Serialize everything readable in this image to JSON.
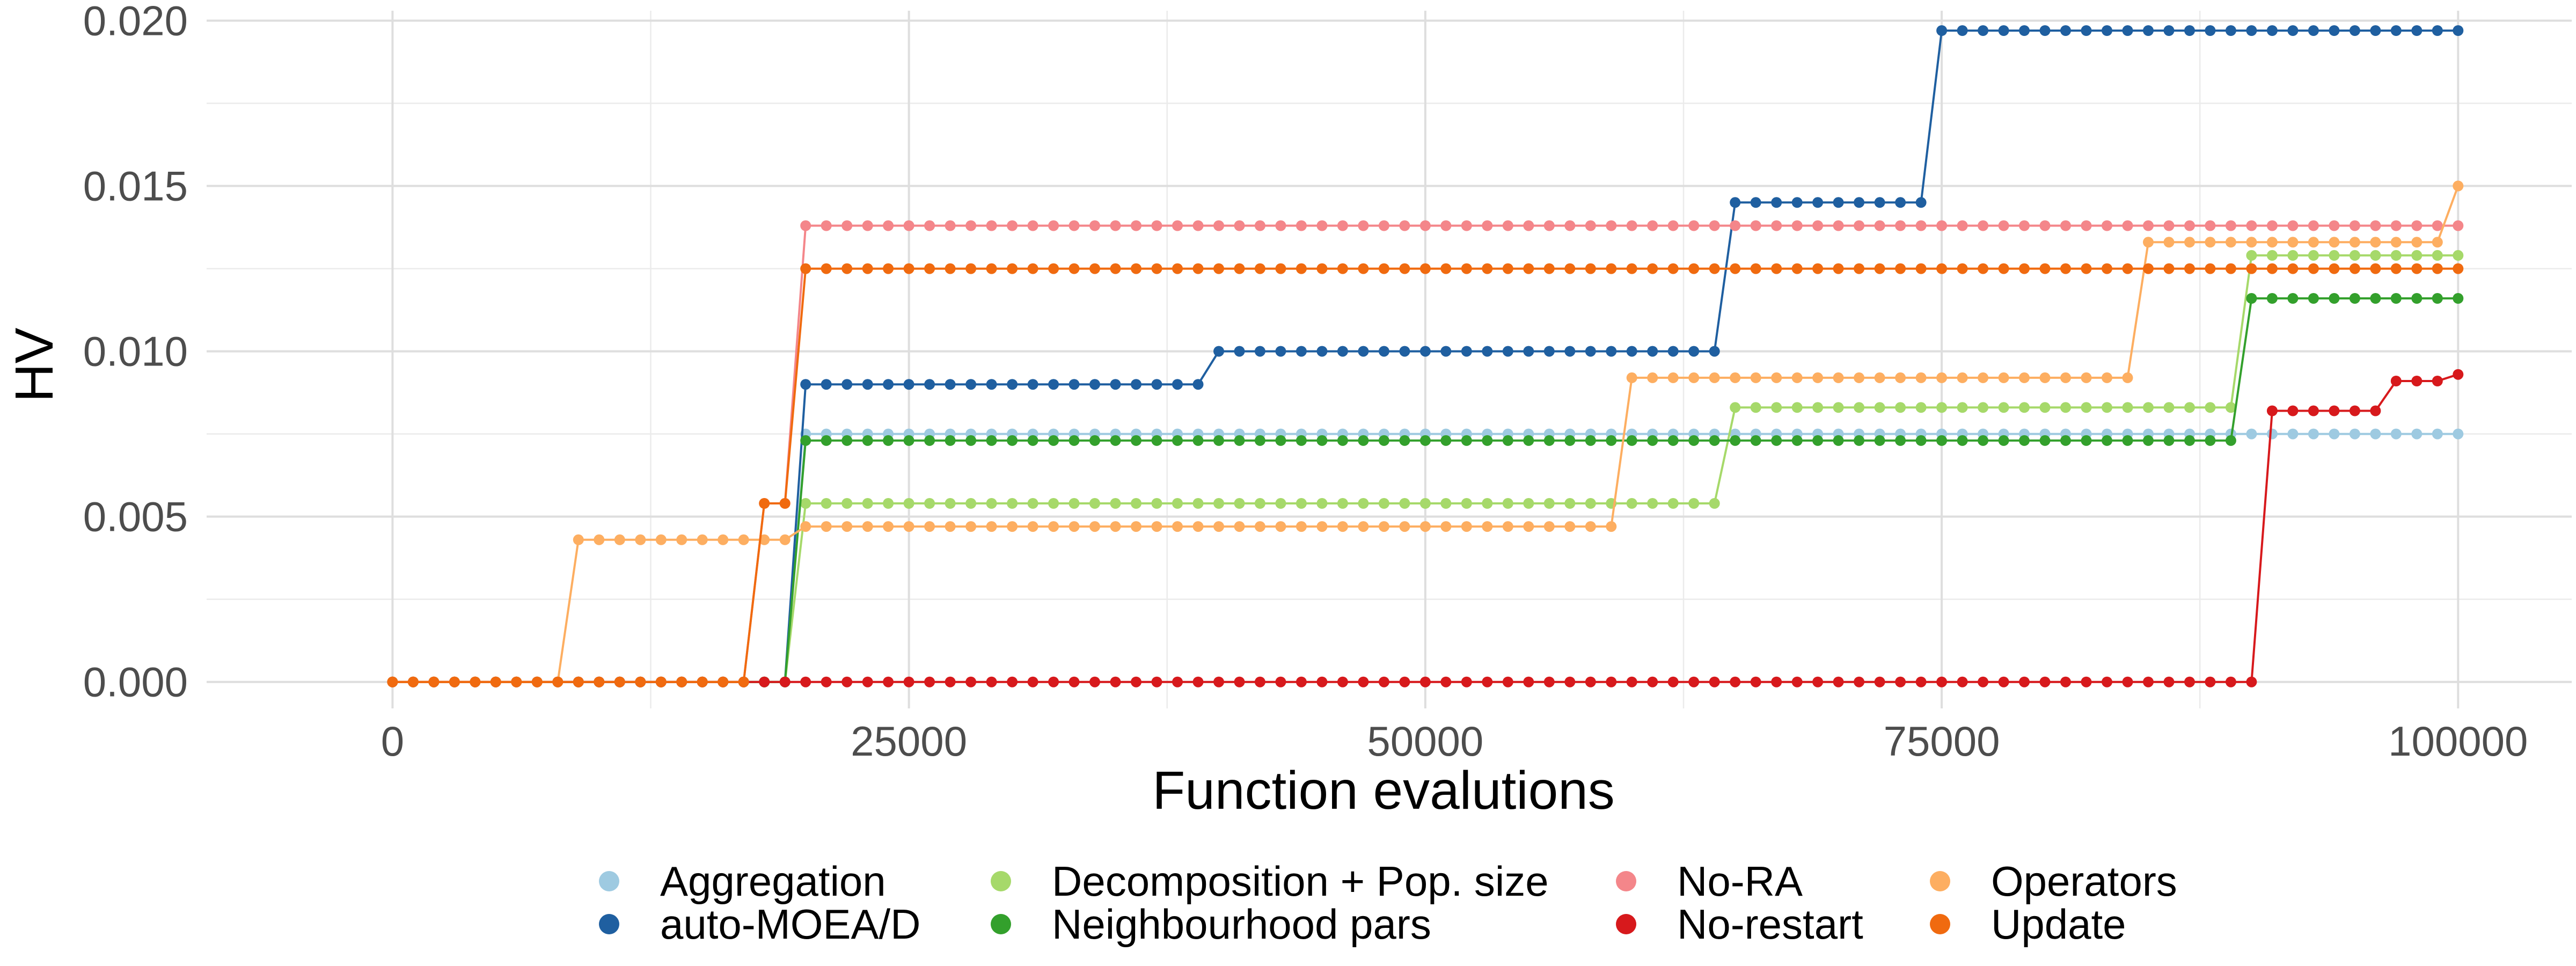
{
  "chart_data": {
    "type": "line",
    "title": "",
    "xlabel": "Function evalutions",
    "ylabel": "HV",
    "xlim": [
      -9000,
      105500
    ],
    "ylim": [
      -0.0008,
      0.0203
    ],
    "x_ticks": [
      0,
      25000,
      50000,
      75000,
      100000
    ],
    "x_tick_labels": [
      "0",
      "25000",
      "50000",
      "75000",
      "100000"
    ],
    "y_ticks": [
      0.0,
      0.005,
      0.01,
      0.015,
      0.02
    ],
    "y_tick_labels": [
      "0.000",
      "0.005",
      "0.010",
      "0.015",
      "0.020"
    ],
    "grid": true,
    "marker_step": 1000,
    "x_range": [
      0,
      100000
    ],
    "legend_position": "bottom",
    "series": [
      {
        "name": "Aggregation",
        "color": "#9ecae1",
        "steps": [
          [
            0,
            0.0
          ],
          [
            20000,
            0.0075
          ]
        ]
      },
      {
        "name": "auto-MOEA/D",
        "color": "#1f5fa0",
        "steps": [
          [
            0,
            0.0
          ],
          [
            20000,
            0.009
          ],
          [
            40000,
            0.01
          ],
          [
            65000,
            0.0145
          ],
          [
            75000,
            0.0197
          ]
        ]
      },
      {
        "name": "Decomposition + Pop. size",
        "color": "#a6d96a",
        "steps": [
          [
            0,
            0.0
          ],
          [
            20000,
            0.0054
          ],
          [
            65000,
            0.0083
          ],
          [
            90000,
            0.0129
          ]
        ]
      },
      {
        "name": "Neighbourhood pars",
        "color": "#33a02c",
        "steps": [
          [
            0,
            0.0
          ],
          [
            20000,
            0.0073
          ],
          [
            90000,
            0.0116
          ]
        ]
      },
      {
        "name": "No-RA",
        "color": "#f4868a",
        "steps": [
          [
            0,
            0.0
          ],
          [
            18000,
            0.0054
          ],
          [
            20000,
            0.0138
          ]
        ]
      },
      {
        "name": "No-restart",
        "color": "#d7191c",
        "steps": [
          [
            0,
            0.0
          ],
          [
            91000,
            0.0082
          ],
          [
            97000,
            0.0091
          ],
          [
            100000,
            0.0093
          ]
        ]
      },
      {
        "name": "Operators",
        "color": "#fdae61",
        "steps": [
          [
            0,
            0.0
          ],
          [
            9000,
            0.0043
          ],
          [
            20000,
            0.0047
          ],
          [
            60000,
            0.0092
          ],
          [
            85000,
            0.0133
          ],
          [
            100000,
            0.015
          ]
        ]
      },
      {
        "name": "Update",
        "color": "#f06a0f",
        "steps": [
          [
            0,
            0.0
          ],
          [
            18000,
            0.0054
          ],
          [
            20000,
            0.0125
          ]
        ]
      }
    ]
  }
}
